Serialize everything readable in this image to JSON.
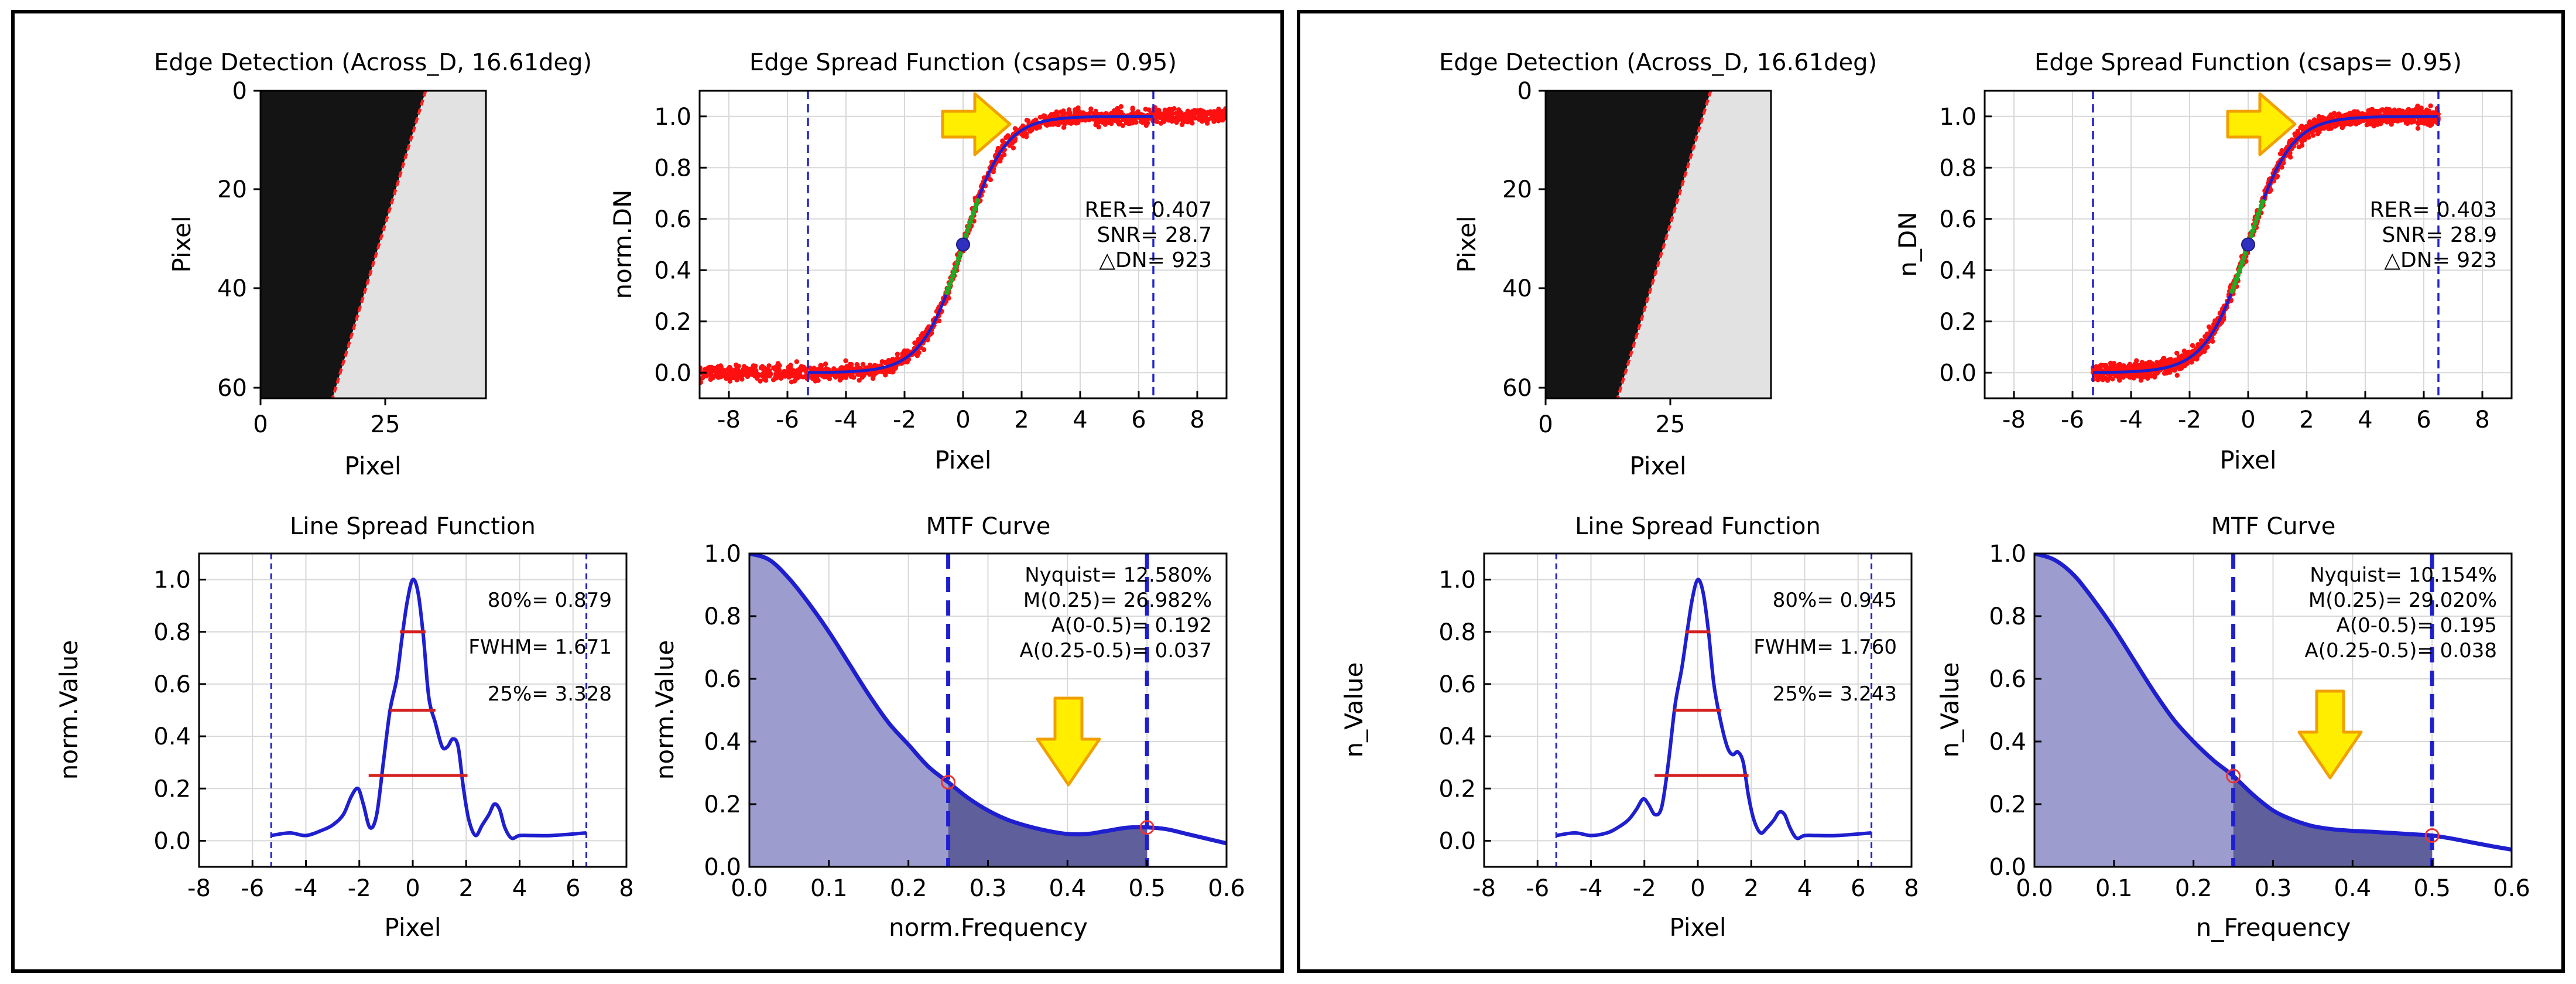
{
  "colors": {
    "frame": "#000000",
    "curve": "#1f1fd0",
    "points": "#ff1010",
    "fill_light": "#9c9ccf",
    "fill_dark": "#5f5f9c",
    "guide": "#2222cc",
    "red_line": "#d42020",
    "arrow_fill": "#ffee00",
    "arrow_edge": "#f0a000",
    "green_points": "#22aa22",
    "marker": "#ee3333"
  },
  "chart_data": [
    {
      "type": "image",
      "panel": "left",
      "title": "Edge Detection (Across_D, 16.61deg)",
      "xlabel": "Pixel",
      "ylabel": "Pixel",
      "xticks": [
        "0",
        "25"
      ],
      "yticks": [
        "0",
        "20",
        "40",
        "60"
      ],
      "edge_angle_deg": 16.61
    },
    {
      "type": "scatter",
      "panel": "left",
      "title": "Edge Spread Function (csaps= 0.95)",
      "xlabel": "Pixel",
      "ylabel": "norm.DN",
      "xlim": [
        -9,
        9
      ],
      "ylim": [
        -0.1,
        1.1
      ],
      "xticks": [
        "-8",
        "-6",
        "-4",
        "-2",
        "0",
        "2",
        "4",
        "6",
        "8"
      ],
      "yticks": [
        "0.0",
        "0.2",
        "0.4",
        "0.6",
        "0.8",
        "1.0"
      ],
      "annotations": [
        "RER= 0.407",
        "SNR= 28.7",
        "△DN=  923"
      ],
      "rer": 0.407,
      "snr": 28.7,
      "delta_dn": 923,
      "guide_x": [
        -5.3,
        6.5
      ],
      "points_x_range": [
        -9,
        9
      ],
      "edge_center": 0,
      "sigmoid_width": 0.7
    },
    {
      "type": "line",
      "panel": "left",
      "title": "Line Spread Function",
      "xlabel": "Pixel",
      "ylabel": "norm.Value",
      "xlim": [
        -8,
        8
      ],
      "ylim": [
        -0.1,
        1.1
      ],
      "xticks": [
        "-8",
        "-6",
        "-4",
        "-2",
        "0",
        "2",
        "4",
        "6",
        "8"
      ],
      "yticks": [
        "0.0",
        "0.2",
        "0.4",
        "0.6",
        "0.8",
        "1.0"
      ],
      "annotations": [
        "80%= 0.879",
        "FWHM= 1.671",
        "25%= 3.328"
      ],
      "x": [
        -5.3,
        -4.6,
        -4,
        -3.4,
        -3,
        -2.6,
        -2.3,
        -2.05,
        -1.85,
        -1.6,
        -1.35,
        -1.1,
        -0.85,
        -0.6,
        -0.4,
        -0.2,
        0,
        0.2,
        0.4,
        0.6,
        0.85,
        1.1,
        1.3,
        1.5,
        1.7,
        1.9,
        2.1,
        2.35,
        2.6,
        2.85,
        3.05,
        3.25,
        3.45,
        3.7,
        4.0,
        4.5,
        5.2,
        6.5
      ],
      "y": [
        0.02,
        0.03,
        0.02,
        0.04,
        0.06,
        0.1,
        0.17,
        0.2,
        0.14,
        0.05,
        0.1,
        0.3,
        0.5,
        0.62,
        0.78,
        0.92,
        1.0,
        0.95,
        0.78,
        0.55,
        0.45,
        0.36,
        0.36,
        0.39,
        0.36,
        0.2,
        0.08,
        0.02,
        0.06,
        0.1,
        0.14,
        0.12,
        0.05,
        0.01,
        0.02,
        0.02,
        0.02,
        0.03
      ],
      "levels": [
        {
          "y": 0.8,
          "x1": -0.48,
          "x2": 0.48
        },
        {
          "y": 0.5,
          "x1": -0.85,
          "x2": 0.85
        },
        {
          "y": 0.25,
          "x1": -1.65,
          "x2": 2.05
        }
      ],
      "guide_x": [
        -5.3,
        6.5
      ]
    },
    {
      "type": "area",
      "panel": "left",
      "title": "MTF Curve",
      "xlabel": "norm.Frequency",
      "ylabel": "norm.Value",
      "xlim": [
        0,
        0.6
      ],
      "ylim": [
        0,
        1
      ],
      "xticks": [
        "0.0",
        "0.1",
        "0.2",
        "0.3",
        "0.4",
        "0.5",
        "0.6"
      ],
      "yticks": [
        "0.0",
        "0.2",
        "0.4",
        "0.6",
        "0.8",
        "1.0"
      ],
      "annotations": [
        "Nyquist= 12.580%",
        "M(0.25)= 26.982%",
        "A(0-0.5)= 0.192",
        "A(0.25-0.5)= 0.037"
      ],
      "x": [
        0,
        0.025,
        0.05,
        0.075,
        0.1,
        0.125,
        0.15,
        0.175,
        0.2,
        0.225,
        0.25,
        0.275,
        0.3,
        0.325,
        0.35,
        0.375,
        0.4,
        0.425,
        0.45,
        0.475,
        0.5,
        0.525,
        0.55,
        0.575,
        0.6
      ],
      "y": [
        1.0,
        0.98,
        0.92,
        0.84,
        0.75,
        0.65,
        0.55,
        0.46,
        0.39,
        0.32,
        0.27,
        0.22,
        0.18,
        0.15,
        0.13,
        0.115,
        0.105,
        0.105,
        0.115,
        0.125,
        0.126,
        0.12,
        0.105,
        0.09,
        0.075
      ],
      "markers": [
        {
          "x": 0.25,
          "y": 0.27
        },
        {
          "x": 0.5,
          "y": 0.126
        }
      ],
      "guide_x": [
        0.25,
        0.5
      ]
    },
    {
      "type": "image",
      "panel": "right",
      "title": "Edge Detection (Across_D, 16.61deg)",
      "xlabel": "Pixel",
      "ylabel": "Pixel",
      "xticks": [
        "0",
        "25"
      ],
      "yticks": [
        "0",
        "20",
        "40",
        "60"
      ],
      "edge_angle_deg": 16.61
    },
    {
      "type": "scatter",
      "panel": "right",
      "title": "Edge Spread Function (csaps= 0.95)",
      "xlabel": "Pixel",
      "ylabel": "n_DN",
      "xlim": [
        -9,
        9
      ],
      "ylim": [
        -0.1,
        1.1
      ],
      "xticks": [
        "-8",
        "-6",
        "-4",
        "-2",
        "0",
        "2",
        "4",
        "6",
        "8"
      ],
      "yticks": [
        "0.0",
        "0.2",
        "0.4",
        "0.6",
        "0.8",
        "1.0"
      ],
      "annotations": [
        "RER= 0.403",
        "SNR= 28.9",
        "△DN=  923"
      ],
      "rer": 0.403,
      "snr": 28.9,
      "delta_dn": 923,
      "guide_x": [
        -5.3,
        6.5
      ],
      "points_x_range": [
        -5.3,
        6.5
      ],
      "edge_center": 0,
      "sigmoid_width": 0.72
    },
    {
      "type": "line",
      "panel": "right",
      "title": "Line Spread Function",
      "xlabel": "Pixel",
      "ylabel": "n_Value",
      "xlim": [
        -8,
        8
      ],
      "ylim": [
        -0.1,
        1.1
      ],
      "xticks": [
        "-8",
        "-6",
        "-4",
        "-2",
        "0",
        "2",
        "4",
        "6",
        "8"
      ],
      "yticks": [
        "0.0",
        "0.2",
        "0.4",
        "0.6",
        "0.8",
        "1.0"
      ],
      "annotations": [
        "80%= 0.945",
        "FWHM= 1.760",
        "25%= 3.243"
      ],
      "x": [
        -5.3,
        -4.6,
        -4,
        -3.4,
        -3,
        -2.6,
        -2.3,
        -2.05,
        -1.85,
        -1.6,
        -1.35,
        -1.1,
        -0.85,
        -0.6,
        -0.4,
        -0.2,
        0,
        0.2,
        0.4,
        0.6,
        0.85,
        1.1,
        1.3,
        1.5,
        1.7,
        1.9,
        2.1,
        2.35,
        2.6,
        2.85,
        3.05,
        3.25,
        3.45,
        3.7,
        4.0,
        4.5,
        5.2,
        6.5
      ],
      "y": [
        0.02,
        0.03,
        0.02,
        0.03,
        0.05,
        0.08,
        0.12,
        0.16,
        0.14,
        0.1,
        0.13,
        0.3,
        0.52,
        0.66,
        0.8,
        0.93,
        1.0,
        0.95,
        0.8,
        0.6,
        0.46,
        0.36,
        0.33,
        0.34,
        0.3,
        0.17,
        0.08,
        0.03,
        0.05,
        0.08,
        0.11,
        0.1,
        0.05,
        0.01,
        0.02,
        0.02,
        0.02,
        0.03
      ],
      "levels": [
        {
          "y": 0.8,
          "x1": -0.47,
          "x2": 0.47
        },
        {
          "y": 0.5,
          "x1": -0.88,
          "x2": 0.88
        },
        {
          "y": 0.25,
          "x1": -1.62,
          "x2": 1.9
        }
      ],
      "guide_x": [
        -5.3,
        6.5
      ]
    },
    {
      "type": "area",
      "panel": "right",
      "title": "MTF Curve",
      "xlabel": "n_Frequency",
      "ylabel": "n_Value",
      "xlim": [
        0,
        0.6
      ],
      "ylim": [
        0,
        1
      ],
      "xticks": [
        "0.0",
        "0.1",
        "0.2",
        "0.3",
        "0.4",
        "0.5",
        "0.6"
      ],
      "yticks": [
        "0.0",
        "0.2",
        "0.4",
        "0.6",
        "0.8",
        "1.0"
      ],
      "annotations": [
        "Nyquist= 10.154%",
        "M(0.25)= 29.020%",
        "A(0-0.5)= 0.195",
        "A(0.25-0.5)= 0.038"
      ],
      "x": [
        0,
        0.025,
        0.05,
        0.075,
        0.1,
        0.125,
        0.15,
        0.175,
        0.2,
        0.225,
        0.25,
        0.275,
        0.3,
        0.325,
        0.35,
        0.375,
        0.4,
        0.425,
        0.45,
        0.475,
        0.5,
        0.525,
        0.55,
        0.575,
        0.6
      ],
      "y": [
        1.0,
        0.98,
        0.93,
        0.85,
        0.76,
        0.66,
        0.56,
        0.47,
        0.4,
        0.34,
        0.29,
        0.23,
        0.18,
        0.15,
        0.13,
        0.12,
        0.115,
        0.112,
        0.108,
        0.104,
        0.1,
        0.09,
        0.078,
        0.066,
        0.055
      ],
      "markers": [
        {
          "x": 0.25,
          "y": 0.29
        },
        {
          "x": 0.5,
          "y": 0.1
        }
      ],
      "guide_x": [
        0.25,
        0.5
      ]
    }
  ]
}
